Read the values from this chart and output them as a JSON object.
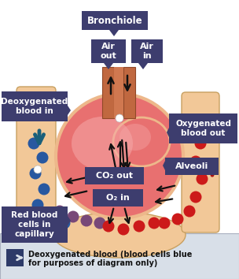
{
  "bg_color": "#ffffff",
  "legend_bg": "#d8dfe8",
  "label_box_color": "#3d3d6e",
  "label_text_color": "#ffffff",
  "alveoli_outer_color": "#edb88b",
  "alveoli_inner_color": "#e87070",
  "alveoli_highlight": "#f5a8a8",
  "cap_color": "#f2c898",
  "cap_edge": "#c8a060",
  "bronchiole_color": "#c06840",
  "bronchiole_edge": "#904828",
  "arrow_color": "#111111",
  "deoxy_arrow_color": "#1a5f7a",
  "oxy_arrow_color": "#aa1515",
  "blue_cell_color": "#2858a0",
  "purple_cell_color": "#784878",
  "red_cell_color": "#cc1a1a",
  "legend_sq_color": "#2d3a68",
  "bronchiole_label": "Bronchiole",
  "air_out_label": "Air\nout",
  "air_in_label": "Air\nin",
  "deoxy_label": "Deoxygenated\nblood in",
  "oxy_label": "Oxygenated\nblood out",
  "alveoli_label": "Alveoli",
  "co2_label": "CO₂ out",
  "o2_label": "O₂ in",
  "rbc_label": "Red blood\ncells in\ncapillary",
  "legend_text1": "Deoxygenated blood (blood cells blue",
  "legend_text2": "for purposes of diagram only)"
}
